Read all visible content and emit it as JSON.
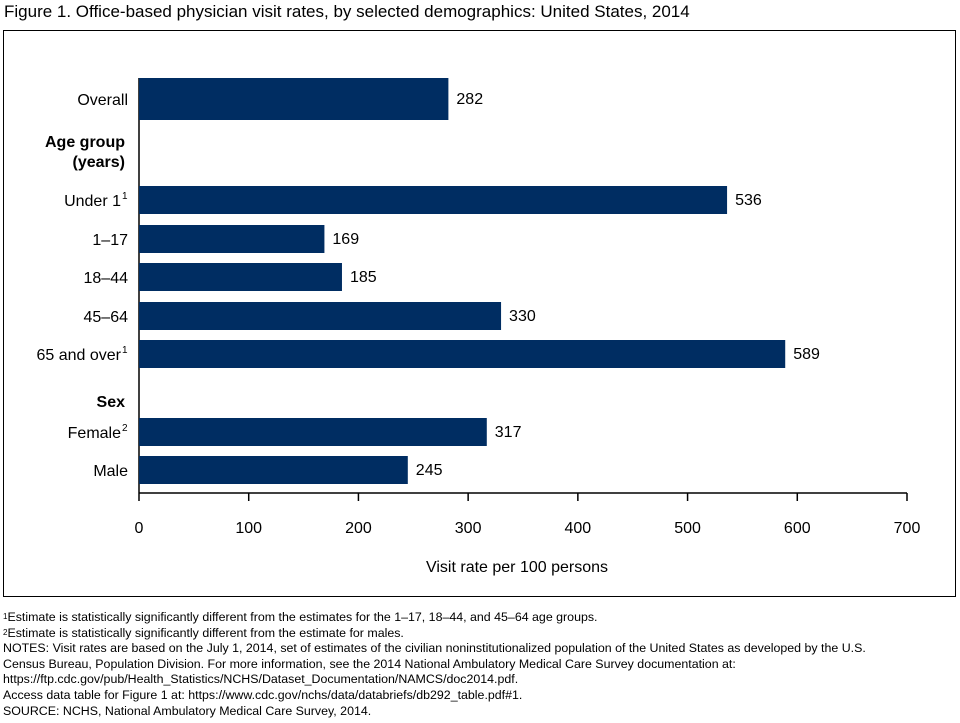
{
  "figure_title": "Figure 1. Office-based physician visit rates, by selected demographics: United States, 2014",
  "chart_data": {
    "type": "bar",
    "orientation": "horizontal",
    "bar_color": "#002d62",
    "xlabel": "Visit rate per 100 persons",
    "xlim": [
      0,
      700
    ],
    "xticks": [
      0,
      100,
      200,
      300,
      400,
      500,
      600,
      700
    ],
    "rows": [
      {
        "kind": "bar",
        "label": "Overall",
        "sup": "",
        "value": 282
      },
      {
        "kind": "heading",
        "label": "Age group",
        "label2": "(years)"
      },
      {
        "kind": "bar",
        "label": "Under 1",
        "sup": "1",
        "value": 536
      },
      {
        "kind": "bar",
        "label": "1–17",
        "sup": "",
        "value": 169
      },
      {
        "kind": "bar",
        "label": "18–44",
        "sup": "",
        "value": 185
      },
      {
        "kind": "bar",
        "label": "45–64",
        "sup": "",
        "value": 330
      },
      {
        "kind": "bar",
        "label": "65 and over",
        "sup": "1",
        "value": 589
      },
      {
        "kind": "heading",
        "label": "Sex",
        "label2": ""
      },
      {
        "kind": "bar",
        "label": "Female",
        "sup": "2",
        "value": 317
      },
      {
        "kind": "bar",
        "label": "Male",
        "sup": "",
        "value": 245
      }
    ]
  },
  "footnotes": {
    "note1_marker": "1",
    "note1": "Estimate is statistically significantly different  from the estimates for the 1–17, 18–44, and 45–64 age groups.",
    "note2_marker": "2",
    "note2": "Estimate is statistically significantly different from the estimate for males.",
    "notes_line1": "NOTES: Visit rates are based on the July 1, 2014, set of estimates of the civilian noninstitutionalized population of the United States as developed by the U.S.",
    "notes_line2": "Census Bureau, Population Division. For more information, see the 2014 National Ambulatory Medical Care Survey documentation at:",
    "notes_line3": "https://ftp.cdc.gov/pub/Health_Statistics/NCHS/Dataset_Documentation/NAMCS/doc2014.pdf.",
    "access": "Access data table for Figure 1 at: https://www.cdc.gov/nchs/data/databriefs/db292_table.pdf#1.",
    "source": "SOURCE: NCHS, National Ambulatory Medical Care Survey, 2014."
  }
}
